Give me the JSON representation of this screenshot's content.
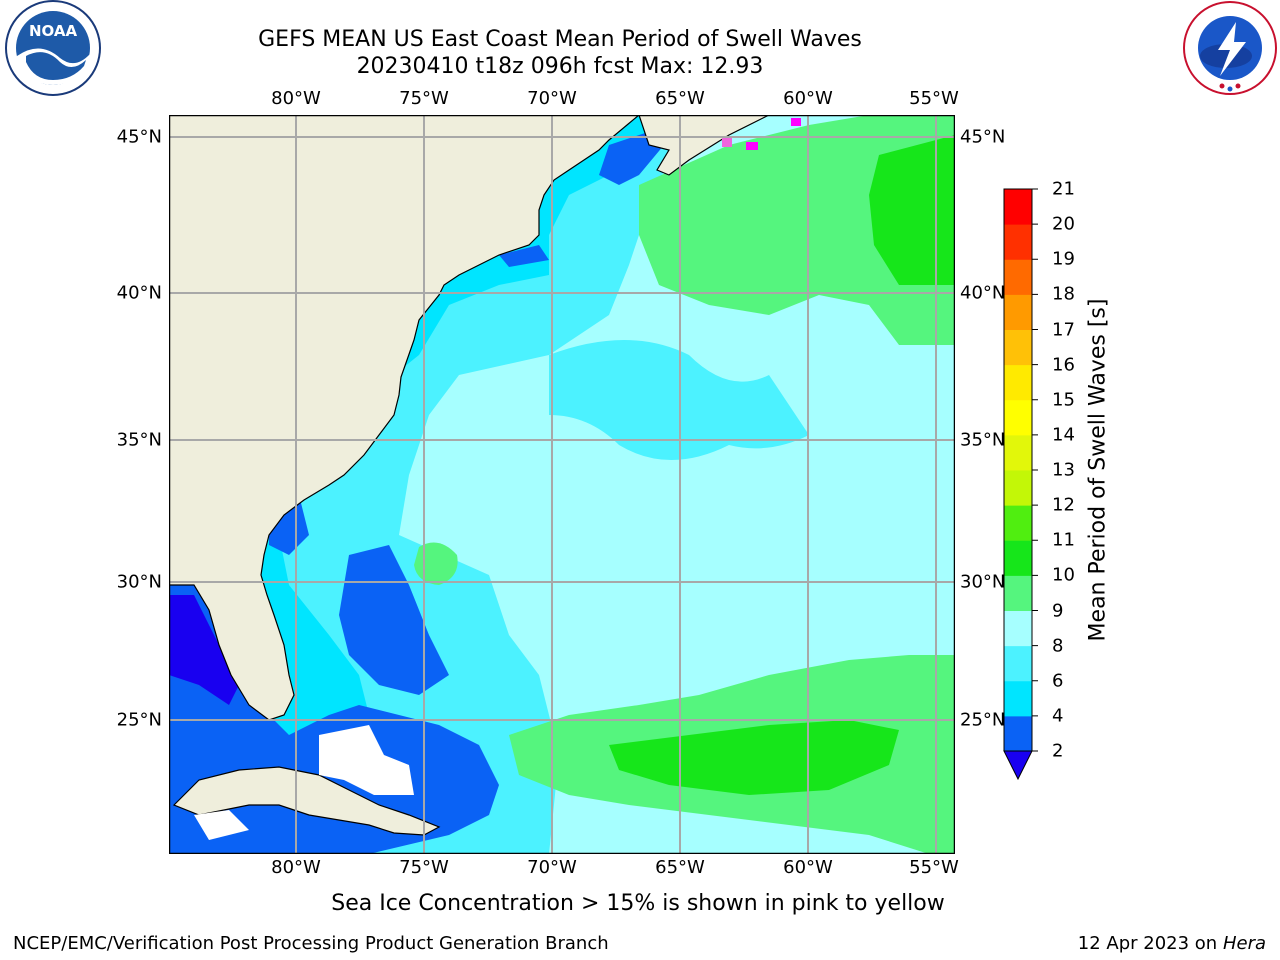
{
  "title_line1": "GEFS MEAN US East Coast Mean Period of Swell Waves",
  "title_line2": "20230410 t18z 096h fcst   Max: 12.93",
  "longitude_labels": [
    "80°W",
    "75°W",
    "70°W",
    "65°W",
    "60°W",
    "55°W"
  ],
  "latitude_labels": [
    "45°N",
    "40°N",
    "35°N",
    "30°N",
    "25°N"
  ],
  "colorbar": {
    "title": "Mean Period of Swell Waves [s]",
    "ticks": [
      "2",
      "4",
      "6",
      "8",
      "9",
      "10",
      "11",
      "12",
      "13",
      "14",
      "15",
      "16",
      "17",
      "18",
      "19",
      "20",
      "21"
    ],
    "colors": [
      "#0a62f5",
      "#00e5ff",
      "#4cf2ff",
      "#a6ffff",
      "#55f57e",
      "#16e61a",
      "#50ee10",
      "#c3f707",
      "#e2f70a",
      "#ffff00",
      "#ffea00",
      "#ffc107",
      "#ff9a00",
      "#ff6a00",
      "#ff3000",
      "#ff0000"
    ],
    "under_color": "#1900f0"
  },
  "note": "Sea Ice Concentration > 15% is shown in pink to yellow",
  "footer_left": "NCEP/EMC/Verification Post Processing Product Generation Branch",
  "footer_date": "12 Apr 2023 on",
  "footer_host": "Hera",
  "logos": {
    "left": "NOAA",
    "right": "NATIONAL WEATHER SERVICE"
  }
}
